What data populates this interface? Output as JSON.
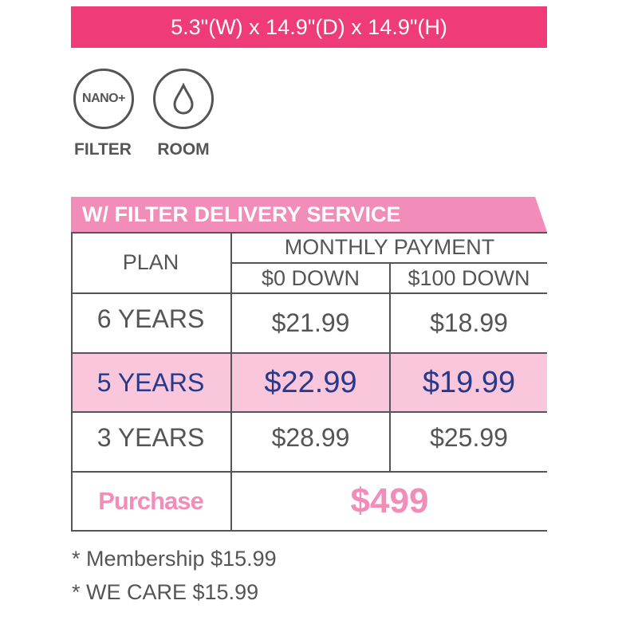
{
  "dimensions": "5.3\"(W) x 14.9\"(D) x 14.9\"(H)",
  "features": [
    {
      "icon": "nano-plus-filter-icon",
      "badge": "NANO+",
      "label": "FILTER"
    },
    {
      "icon": "water-drop-icon",
      "label": "ROOM"
    }
  ],
  "section_title": "W/ FILTER DELIVERY SERVICE",
  "table": {
    "plan_header": "PLAN",
    "monthly_header": "MONTHLY PAYMENT",
    "sub_headers": [
      "$0 DOWN",
      "$100 DOWN"
    ],
    "rows": [
      {
        "plan": "6 YEARS",
        "zero_down": "$21.99",
        "hundred_down": "$18.99",
        "highlight": false
      },
      {
        "plan": "5 YEARS",
        "zero_down": "$22.99",
        "hundred_down": "$19.99",
        "highlight": true
      },
      {
        "plan": "3 YEARS",
        "zero_down": "$28.99",
        "hundred_down": "$25.99",
        "highlight": false
      }
    ],
    "purchase_label": "Purchase",
    "purchase_price": "$499"
  },
  "footnotes": [
    "* Membership $15.99",
    "* WE CARE $15.99"
  ],
  "colors": {
    "banner": "#ef3b78",
    "tab": "#f28cb8",
    "highlight_row": "#f9c6dc",
    "highlight_text": "#27398a",
    "purchase": "#f28cb8",
    "text": "#555555"
  }
}
